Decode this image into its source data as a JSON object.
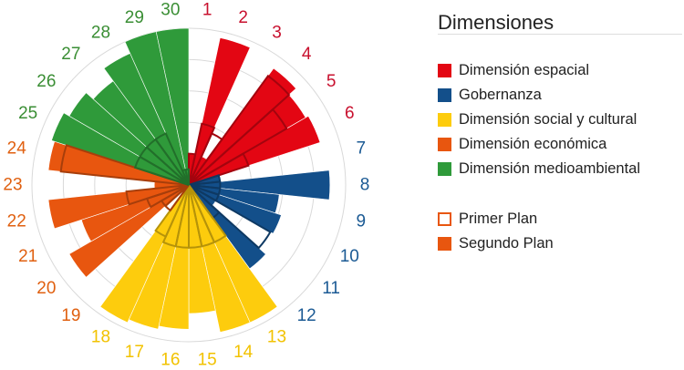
{
  "chart_data": {
    "type": "polar-bar",
    "categories": [
      "1",
      "2",
      "3",
      "4",
      "5",
      "6",
      "7",
      "8",
      "9",
      "10",
      "11",
      "12",
      "13",
      "14",
      "15",
      "16",
      "17",
      "18",
      "19",
      "20",
      "21",
      "22",
      "23",
      "24",
      "25",
      "26",
      "27",
      "28",
      "29",
      "30"
    ],
    "rmax": 5,
    "grid": true,
    "legend_placement": "right",
    "series": [
      {
        "name": "Primer Plan",
        "values": [
          1,
          2,
          1.8,
          4.3,
          3.6,
          2,
          1,
          1,
          1,
          1,
          3,
          1.3,
          2,
          2,
          2,
          2,
          2,
          1.8,
          1,
          1,
          1.4,
          2,
          0.2,
          4.1,
          1.8,
          1.8,
          1.8,
          1.8,
          0.5,
          0.5
        ],
        "style": "outline"
      },
      {
        "name": "Segundo Plan",
        "values": [
          1,
          4.8,
          1,
          4.6,
          4.3,
          4.4,
          1,
          4.5,
          2.9,
          3.1,
          1,
          3.3,
          4.8,
          4.8,
          4.1,
          4.6,
          4.7,
          4.8,
          0.2,
          4.4,
          3.6,
          4.5,
          1.1,
          4.5,
          4.6,
          4.4,
          4.1,
          4.6,
          5,
          5
        ],
        "style": "filled"
      }
    ],
    "groups": [
      {
        "name": "Dimensión espacial",
        "color": "#e30613",
        "items": [
          1,
          2,
          3,
          4,
          5,
          6
        ]
      },
      {
        "name": "Gobernanza",
        "color": "#134f8a",
        "items": [
          7,
          8,
          9,
          10,
          11,
          12
        ]
      },
      {
        "name": "Dimensión social y cultural",
        "color": "#fdcc0d",
        "items": [
          13,
          14,
          15,
          16,
          17,
          18
        ]
      },
      {
        "name": "Dimensión económica",
        "color": "#e8560f",
        "items": [
          19,
          20,
          21,
          22,
          23,
          24
        ]
      },
      {
        "name": "Dimensión medioambiental",
        "color": "#2f9a3a",
        "items": [
          25,
          26,
          27,
          28,
          29,
          30
        ]
      }
    ],
    "label_colors": [
      "#c8102e",
      "#1b5a94",
      "#f2c200",
      "#e06010",
      "#3a8e34"
    ]
  },
  "legend": {
    "title": "Dimensiones",
    "items": [
      "Dimensión espacial",
      "Gobernanza",
      "Dimensión social y cultural",
      "Dimensión económica",
      "Dimensión medioambiental"
    ],
    "colors": [
      "#e30613",
      "#134f8a",
      "#fdcc0d",
      "#e8560f",
      "#2f9a3a"
    ],
    "plan_items": [
      "Primer Plan",
      "Segundo Plan"
    ],
    "plan_color": "#e8560f"
  }
}
